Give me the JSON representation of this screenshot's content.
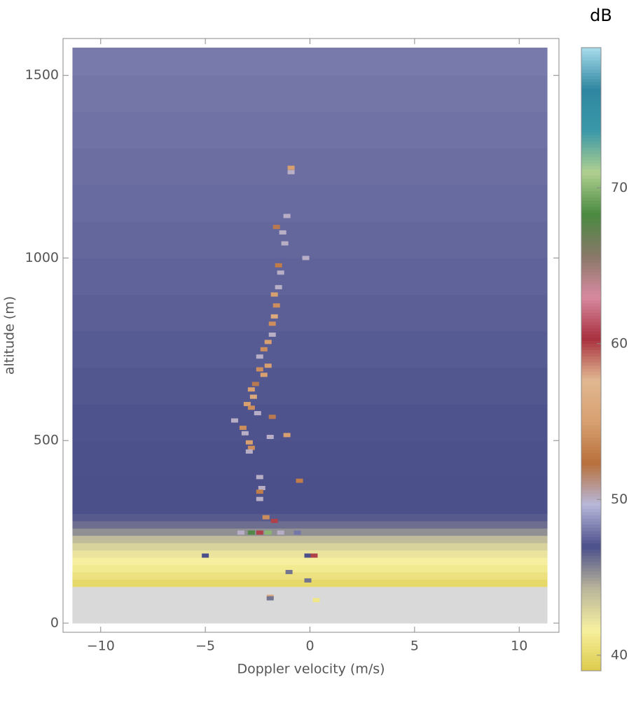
{
  "chart_data": {
    "type": "heatmap",
    "xlabel": "Doppler velocity (m/s)",
    "ylabel": "altitude (m)",
    "colorbar_label": "dB",
    "xlim": [
      -11.8,
      11.9
    ],
    "ylim": [
      -25,
      1601
    ],
    "x_extent": [
      -11.35,
      11.35
    ],
    "xticks": [
      {
        "value": -10,
        "label": "−10"
      },
      {
        "value": -5,
        "label": "−5"
      },
      0,
      5,
      10
    ],
    "yticks": [
      0,
      500,
      1000,
      1500
    ],
    "clim": [
      39,
      79
    ],
    "cticks": [
      40,
      50,
      60,
      70
    ],
    "colormap": [
      "#dccb4a",
      "#f7f0a0",
      "#b8b49a",
      "#4b4f8a",
      "#b8b8da",
      "#b8703c",
      "#d8a070",
      "#e0b890",
      "#a83040",
      "#d88aa0",
      "#887868",
      "#4a8a40",
      "#b0d090",
      "#3a98a8",
      "#2e86a0",
      "#a8dcec"
    ],
    "null_color": "#d9d9d9",
    "altitude_bins": [
      0,
      100,
      120,
      140,
      160,
      180,
      200,
      220,
      240,
      260,
      280,
      300,
      320,
      400,
      500,
      600,
      700,
      800,
      900,
      1000,
      1100,
      1200,
      1300,
      1400,
      1500,
      1576
    ],
    "background": [
      null,
      40.0,
      40.6,
      41.2,
      41.7,
      42.2,
      43.0,
      44.0,
      45.3,
      46.2,
      46.7,
      47.0,
      47.0,
      47.05,
      47.1,
      47.2,
      47.3,
      47.4,
      47.5,
      47.6,
      47.7,
      47.8,
      47.9,
      48.0,
      48.1
    ],
    "echo_velocity": [
      -0.9,
      -0.9,
      -1.1,
      -1.6,
      -1.3,
      -1.2,
      -0.2,
      -1.5,
      -1.4,
      -1.5,
      -1.7,
      -1.6,
      -1.7,
      -1.8,
      -1.8,
      -2.0,
      -2.2,
      -2.4,
      -2.0,
      -2.4,
      -2.2,
      -2.6,
      -2.8,
      -2.7,
      -3.0,
      -2.8,
      -2.5,
      -1.8,
      -3.6,
      -3.2,
      -3.1,
      -1.9,
      -1.1,
      -2.9,
      -2.8,
      -2.9,
      -0.5,
      -2.4,
      -2.3,
      -2.4,
      -2.4,
      -2.1,
      -1.7,
      -3.3,
      -2.8,
      -2.4,
      -2.0,
      -1.4,
      -0.6,
      -5.0,
      -0.1,
      0.2,
      -1.0,
      -0.1,
      -1.9,
      -1.9,
      0.3
    ],
    "echo_altitude": [
      1247,
      1235,
      1115,
      1085,
      1070,
      1040,
      1000,
      980,
      960,
      920,
      900,
      870,
      840,
      820,
      790,
      770,
      750,
      730,
      705,
      695,
      680,
      655,
      640,
      620,
      600,
      590,
      575,
      565,
      555,
      535,
      520,
      510,
      515,
      495,
      480,
      470,
      390,
      400,
      370,
      360,
      340,
      290,
      280,
      248,
      248,
      248,
      248,
      248,
      248,
      185,
      185,
      185,
      140,
      117,
      72,
      68,
      63
    ],
    "echo_db": [
      55,
      50,
      50,
      52,
      50,
      50,
      50,
      53,
      50,
      50,
      55,
      54,
      56,
      54,
      50,
      55,
      54,
      50,
      55,
      54,
      55,
      52,
      55,
      56,
      55,
      54,
      50,
      52,
      50,
      54,
      50,
      50,
      55,
      55,
      54,
      50,
      53,
      50,
      50,
      53,
      50,
      54,
      60,
      50,
      68,
      60,
      70,
      50,
      48,
      47,
      47,
      60,
      46,
      46,
      56,
      46,
      41
    ]
  }
}
